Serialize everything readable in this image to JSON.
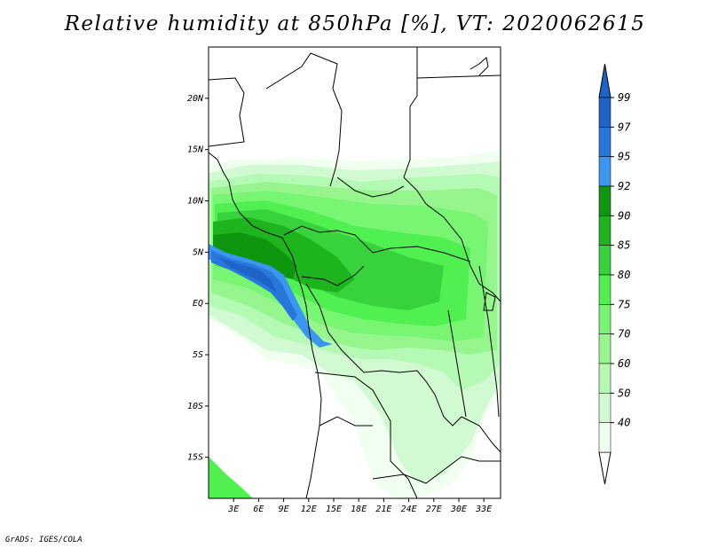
{
  "title": "Relative humidity at 850hPa [%], VT: 2020062615",
  "credit": "GrADS: IGES/COLA",
  "map": {
    "lat_range": [
      -19,
      25
    ],
    "lon_range": [
      0,
      35
    ],
    "lat_ticks": [
      {
        "value": 20,
        "label": "20N"
      },
      {
        "value": 15,
        "label": "15N"
      },
      {
        "value": 10,
        "label": "10N"
      },
      {
        "value": 5,
        "label": "5N"
      },
      {
        "value": 0,
        "label": "EQ"
      },
      {
        "value": -5,
        "label": "5S"
      },
      {
        "value": -10,
        "label": "10S"
      },
      {
        "value": -15,
        "label": "15S"
      }
    ],
    "lon_ticks": [
      {
        "value": 3,
        "label": "3E"
      },
      {
        "value": 6,
        "label": "6E"
      },
      {
        "value": 9,
        "label": "9E"
      },
      {
        "value": 12,
        "label": "12E"
      },
      {
        "value": 15,
        "label": "15E"
      },
      {
        "value": 18,
        "label": "18E"
      },
      {
        "value": 21,
        "label": "21E"
      },
      {
        "value": 24,
        "label": "24E"
      },
      {
        "value": 27,
        "label": "27E"
      },
      {
        "value": 30,
        "label": "30E"
      },
      {
        "value": 33,
        "label": "33E"
      }
    ]
  },
  "colorbar": {
    "labels": [
      "99",
      "97",
      "95",
      "92",
      "90",
      "85",
      "80",
      "75",
      "70",
      "60",
      "50",
      "40"
    ],
    "colors": [
      "#1e64c8",
      "#2878dc",
      "#3c96f0",
      "#0f960f",
      "#1eb41e",
      "#37d23c",
      "#50f050",
      "#78f573",
      "#96f58c",
      "#b4fab4",
      "#d2fad2",
      "#f0fff0"
    ],
    "over_color": "#1e64c8",
    "under_color": "#ffffff"
  }
}
